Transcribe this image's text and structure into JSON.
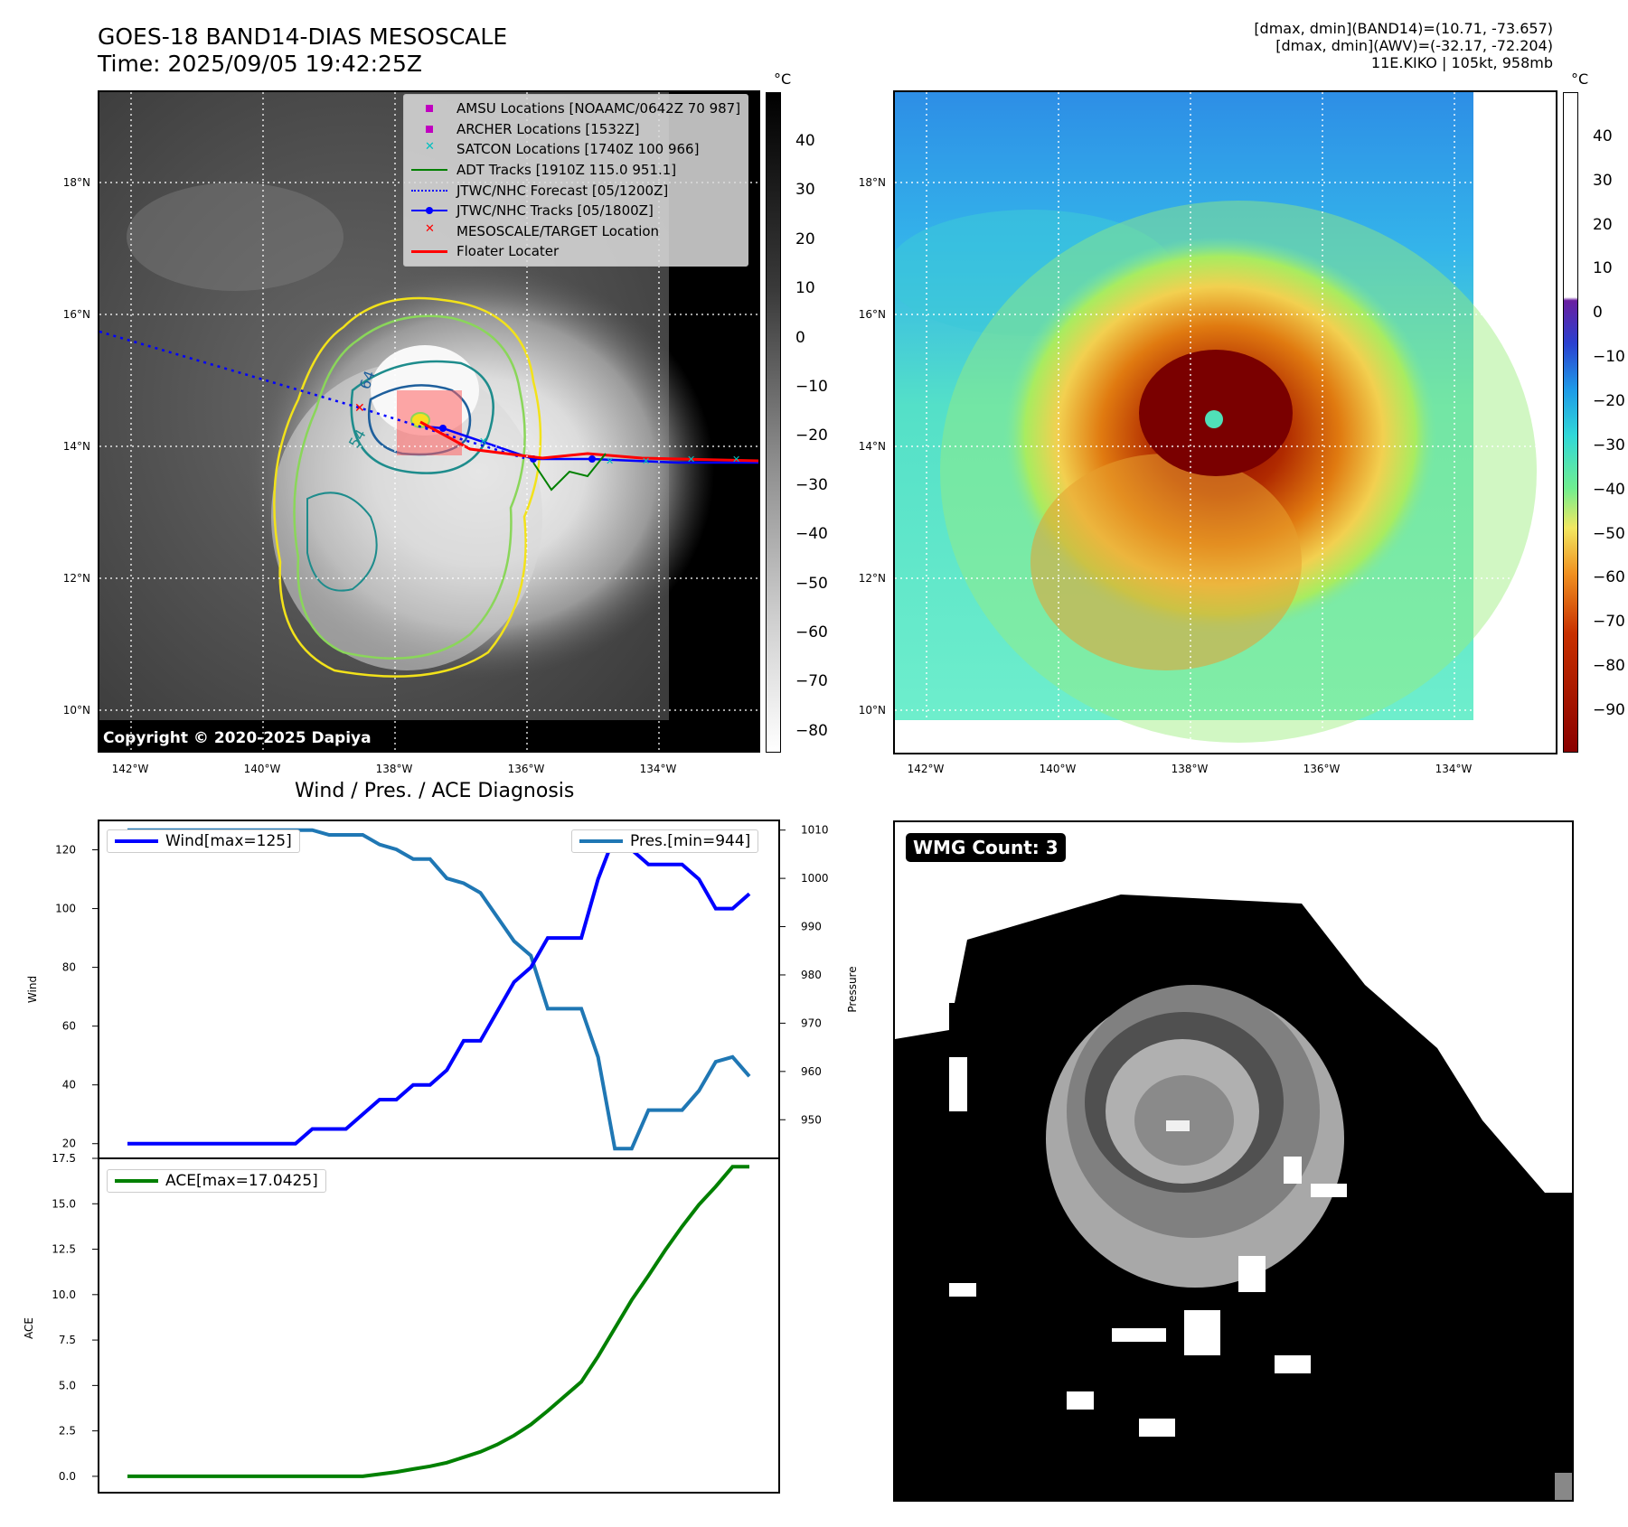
{
  "header": {
    "title_line1": "GOES-18 BAND14-DIAS MESOSCALE",
    "title_line2": "Time: 2025/09/05 19:42:25Z",
    "info_line1": "[dmax, dmin](BAND14)=(10.71, -73.657)",
    "info_line2": "[dmax, dmin](AWV)=(-32.17, -72.204)",
    "info_line3": "11E.KIKO | 105kt, 958mb"
  },
  "map": {
    "lat_labels": [
      "18°N",
      "16°N",
      "14°N",
      "12°N",
      "10°N"
    ],
    "lon_labels": [
      "142°W",
      "140°W",
      "138°W",
      "136°W",
      "134°W"
    ],
    "copyright": "Copyright © 2020-2025 Dapiya",
    "contour_labels": [
      "64",
      "54"
    ],
    "legend": [
      {
        "label": "AMSU Locations [NOAAMC/0642Z 70 987]",
        "symbol": "square",
        "color": "#c000c0"
      },
      {
        "label": "ARCHER Locations [1532Z]",
        "symbol": "square",
        "color": "#c000c0"
      },
      {
        "label": "SATCON Locations [1740Z 100 966]",
        "symbol": "x",
        "color": "#00c0c0"
      },
      {
        "label": "ADT Tracks [1910Z 115.0 951.1]",
        "symbol": "line",
        "color": "#008000"
      },
      {
        "label": "JTWC/NHC Forecast [05/1200Z]",
        "symbol": "dotted",
        "color": "#0000ff"
      },
      {
        "label": "JTWC/NHC Tracks [05/1800Z]",
        "symbol": "line-dot",
        "color": "#0000ff"
      },
      {
        "label": "MESOSCALE/TARGET Location",
        "symbol": "x",
        "color": "#ff0000"
      },
      {
        "label": "Floater Locater",
        "symbol": "line",
        "color": "#ff0000"
      }
    ]
  },
  "colorbar_gray": {
    "unit": "°C",
    "ticks": [
      "40",
      "30",
      "20",
      "10",
      "0",
      "−10",
      "−20",
      "−30",
      "−40",
      "−50",
      "−60",
      "−70",
      "−80"
    ]
  },
  "colorbar_color": {
    "unit": "°C",
    "ticks": [
      "40",
      "30",
      "20",
      "10",
      "0",
      "−10",
      "−20",
      "−30",
      "−40",
      "−50",
      "−60",
      "−70",
      "−80",
      "−90"
    ]
  },
  "diagnosis": {
    "title": "Wind / Pres. / ACE Diagnosis",
    "wind_ylabel": "Wind",
    "pres_ylabel": "Pressure",
    "ace_ylabel": "ACE",
    "wind_legend": "Wind[max=125]",
    "pres_legend": "Pres.[min=944]",
    "ace_legend": "ACE[max=17.0425]",
    "wind_ticks": [
      "120",
      "100",
      "80",
      "60",
      "40",
      "20"
    ],
    "pres_ticks": [
      "1010",
      "1000",
      "990",
      "980",
      "970",
      "960",
      "950"
    ],
    "ace_ticks": [
      "17.5",
      "15.0",
      "12.5",
      "10.0",
      "7.5",
      "5.0",
      "2.5",
      "0.0"
    ],
    "colors": {
      "wind": "#0000ff",
      "pres": "#1f77b4",
      "ace": "#008000"
    }
  },
  "wmg": {
    "label": "WMG Count: 3"
  },
  "chart_data": [
    {
      "type": "line",
      "title": "Wind / Pres. / ACE Diagnosis",
      "ylabel": "Wind",
      "ylim": [
        15,
        130
      ],
      "x": [
        0,
        1,
        2,
        3,
        4,
        5,
        6,
        7,
        8,
        9,
        10,
        11,
        12,
        13,
        14,
        15,
        16,
        17,
        18,
        19,
        20,
        21,
        22,
        23,
        24,
        25,
        26,
        27,
        28,
        29,
        30,
        31,
        32,
        33,
        34,
        35,
        36,
        37
      ],
      "series": [
        {
          "name": "Wind[max=125]",
          "values": [
            20,
            20,
            20,
            20,
            20,
            20,
            20,
            20,
            20,
            20,
            20,
            25,
            25,
            25,
            30,
            35,
            35,
            40,
            40,
            45,
            55,
            55,
            65,
            75,
            80,
            90,
            90,
            90,
            110,
            125,
            120,
            115,
            115,
            115,
            110,
            100,
            100,
            105
          ]
        }
      ]
    },
    {
      "type": "line",
      "ylabel": "Pressure",
      "ylim": [
        942,
        1012
      ],
      "x": [
        0,
        1,
        2,
        3,
        4,
        5,
        6,
        7,
        8,
        9,
        10,
        11,
        12,
        13,
        14,
        15,
        16,
        17,
        18,
        19,
        20,
        21,
        22,
        23,
        24,
        25,
        26,
        27,
        28,
        29,
        30,
        31,
        32,
        33,
        34,
        35,
        36,
        37
      ],
      "series": [
        {
          "name": "Pres.[min=944]",
          "values": [
            1010,
            1010,
            1010,
            1010,
            1010,
            1010,
            1010,
            1010,
            1010,
            1010,
            1010,
            1010,
            1009,
            1009,
            1009,
            1007,
            1006,
            1004,
            1004,
            1000,
            999,
            997,
            992,
            987,
            984,
            973,
            973,
            973,
            963,
            944,
            944,
            952,
            952,
            952,
            956,
            962,
            963,
            959
          ]
        }
      ]
    },
    {
      "type": "line",
      "ylabel": "ACE",
      "ylim": [
        -0.9,
        17.5
      ],
      "x": [
        0,
        1,
        2,
        3,
        4,
        5,
        6,
        7,
        8,
        9,
        10,
        11,
        12,
        13,
        14,
        15,
        16,
        17,
        18,
        19,
        20,
        21,
        22,
        23,
        24,
        25,
        26,
        27,
        28,
        29,
        30,
        31,
        32,
        33,
        34,
        35,
        36,
        37
      ],
      "series": [
        {
          "name": "ACE[max=17.0425]",
          "values": [
            0,
            0,
            0,
            0,
            0,
            0,
            0,
            0,
            0,
            0,
            0,
            0,
            0,
            0,
            0,
            0.12,
            0.24,
            0.4,
            0.55,
            0.75,
            1.05,
            1.35,
            1.75,
            2.25,
            2.85,
            3.6,
            4.4,
            5.2,
            6.6,
            8.15,
            9.7,
            11.05,
            12.45,
            13.75,
            14.95,
            15.95,
            17.04,
            17.04
          ]
        }
      ]
    }
  ]
}
